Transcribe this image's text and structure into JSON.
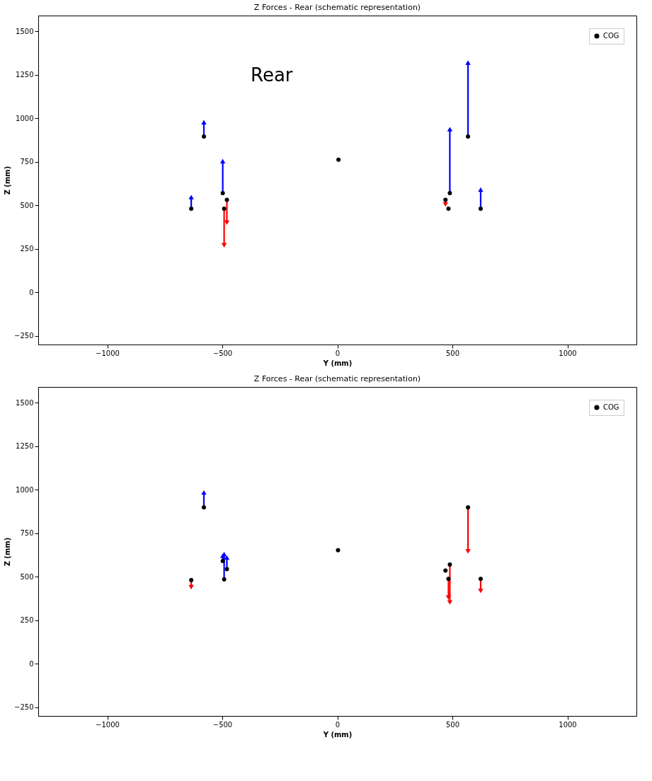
{
  "chart_data": [
    {
      "type": "scatter",
      "title": "Z Forces - Rear (schematic representation)",
      "xlabel": "Y (mm)",
      "ylabel": "Z (mm)",
      "xlim": [
        -1300,
        1300
      ],
      "ylim": [
        -300,
        1590
      ],
      "xticks": [
        -1000,
        -500,
        0,
        500,
        1000
      ],
      "yticks": [
        -250,
        0,
        250,
        500,
        750,
        1000,
        1250,
        1500
      ],
      "legend": "top right",
      "annotations": [
        "Rear"
      ],
      "series": [
        {
          "name": "COG",
          "color": "#000000",
          "x": [
            5
          ],
          "values": [
            762
          ]
        },
        {
          "color": "#000000",
          "x": [
            -580,
            -635,
            -498,
            -480,
            -492,
            470,
            483,
            489,
            568,
            623
          ],
          "values": [
            895,
            480,
            570,
            531,
            480,
            531,
            480,
            570,
            895,
            480
          ]
        },
        {
          "type": "line",
          "color": "#0000ff",
          "marker": "triangle",
          "x": [
            -580,
            -580
          ],
          "values": [
            895,
            977
          ]
        },
        {
          "type": "line",
          "color": "#0000ff",
          "marker": "triangle",
          "x": [
            -635,
            -635
          ],
          "values": [
            480,
            547
          ]
        },
        {
          "type": "line",
          "color": "#0000ff",
          "marker": "triangle",
          "x": [
            -498,
            -498
          ],
          "values": [
            570,
            754
          ]
        },
        {
          "type": "line",
          "color": "#ff0000",
          "marker": "triangle",
          "x": [
            -480,
            -480
          ],
          "values": [
            531,
            400
          ]
        },
        {
          "type": "line",
          "color": "#ff0000",
          "marker": "triangle",
          "x": [
            -492,
            -492
          ],
          "values": [
            480,
            270
          ]
        },
        {
          "type": "line",
          "color": "#ff0000",
          "marker": "triangle",
          "x": [
            470,
            470
          ],
          "values": [
            531,
            505
          ]
        },
        {
          "type": "line",
          "color": "#0000ff",
          "marker": "triangle",
          "x": [
            489,
            489
          ],
          "values": [
            570,
            937
          ]
        },
        {
          "type": "line",
          "color": "#0000ff",
          "marker": "triangle",
          "x": [
            568,
            568
          ],
          "values": [
            895,
            1320
          ]
        },
        {
          "type": "line",
          "color": "#0000ff",
          "marker": "triangle",
          "x": [
            623,
            623
          ],
          "values": [
            480,
            590
          ]
        }
      ]
    },
    {
      "type": "scatter",
      "title": "Z Forces - Rear (schematic representation)",
      "xlabel": "Y (mm)",
      "ylabel": "Z (mm)",
      "xlim": [
        -1300,
        1300
      ],
      "ylim": [
        -300,
        1590
      ],
      "xticks": [
        -1000,
        -500,
        0,
        500,
        1000
      ],
      "yticks": [
        -250,
        0,
        250,
        500,
        750,
        1000,
        1250,
        1500
      ],
      "legend": "top right",
      "series": [
        {
          "name": "COG",
          "color": "#000000",
          "x": [
            3
          ],
          "values": [
            652
          ]
        },
        {
          "color": "#000000",
          "x": [
            -580,
            -635,
            -498,
            -480,
            -492,
            470,
            483,
            489,
            568,
            623
          ],
          "values": [
            898,
            480,
            590,
            543,
            484,
            535,
            488,
            570,
            898,
            488
          ]
        },
        {
          "type": "line",
          "color": "#0000ff",
          "marker": "triangle",
          "x": [
            -580,
            -580
          ],
          "values": [
            898,
            984
          ]
        },
        {
          "type": "line",
          "color": "#ff0000",
          "marker": "triangle",
          "x": [
            -635,
            -635
          ],
          "values": [
            480,
            440
          ]
        },
        {
          "type": "line",
          "color": "#0000ff",
          "marker": "triangle",
          "x": [
            -498,
            -498
          ],
          "values": [
            590,
            620
          ]
        },
        {
          "type": "line",
          "color": "#0000ff",
          "marker": "triangle",
          "x": [
            -480,
            -480
          ],
          "values": [
            543,
            610
          ]
        },
        {
          "type": "line",
          "color": "#0000ff",
          "marker": "triangle",
          "x": [
            -492,
            -492
          ],
          "values": [
            484,
            630
          ]
        },
        {
          "type": "line",
          "color": "#ff0000",
          "marker": "triangle",
          "x": [
            568,
            568
          ],
          "values": [
            898,
            645
          ]
        },
        {
          "type": "line",
          "color": "#ff0000",
          "marker": "triangle",
          "x": [
            489,
            489
          ],
          "values": [
            570,
            352
          ]
        },
        {
          "type": "line",
          "color": "#ff0000",
          "marker": "triangle",
          "x": [
            483,
            483
          ],
          "values": [
            488,
            380
          ]
        },
        {
          "type": "line",
          "color": "#ff0000",
          "marker": "triangle",
          "x": [
            623,
            623
          ],
          "values": [
            488,
            418
          ]
        }
      ]
    }
  ]
}
